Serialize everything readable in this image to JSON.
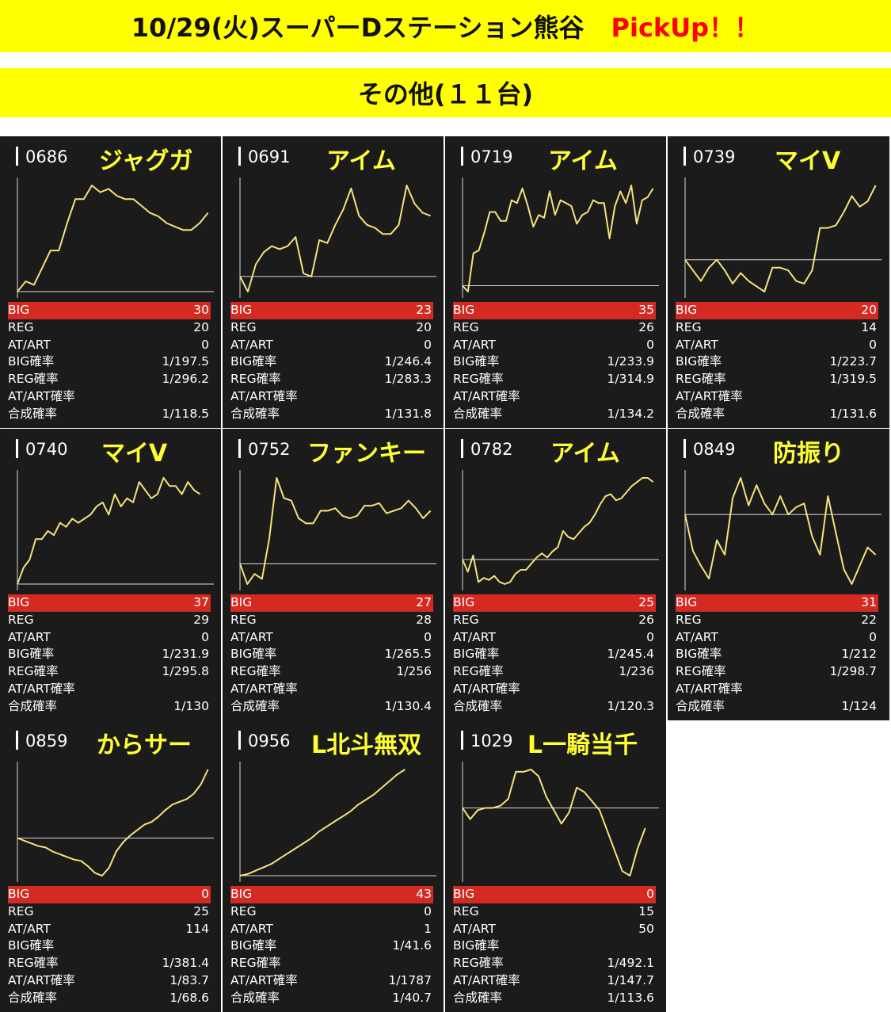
{
  "title": "10/29(火)スーパーDステーション熊谷",
  "pickup": "PickUp！！",
  "subtitle": "その他(１１台)",
  "colors": {
    "banner": "#ffff00",
    "panel": "#1b1b1b",
    "line": "#f5e27a",
    "big_row": "#d42a22",
    "pickup": "#ff0000",
    "name": "#ffff33"
  },
  "labels": {
    "big": "BIG",
    "reg": "REG",
    "at": "AT/ART",
    "big_p": "BIG確率",
    "reg_p": "REG確率",
    "at_p": "AT/ART確率",
    "total_p": "合成確率"
  },
  "chart_data": [
    {
      "type": "line",
      "number": "0686",
      "name": "ジャグガ",
      "y": [
        0,
        3,
        2,
        7,
        12,
        12,
        20,
        27,
        27,
        31,
        29,
        30,
        28,
        27,
        27,
        25,
        23,
        22,
        20,
        19,
        18,
        18,
        20,
        23
      ],
      "stats": {
        "big": "30",
        "reg": "20",
        "at": "0",
        "big_p": "1/197.5",
        "reg_p": "1/296.2",
        "at_p": "",
        "total_p": "1/118.5"
      }
    },
    {
      "type": "line",
      "number": "0691",
      "name": "アイム",
      "y": [
        0,
        -5,
        4,
        8,
        10,
        9,
        10,
        13,
        1,
        0,
        12,
        11,
        17,
        22,
        29,
        20,
        17,
        16,
        14,
        14,
        17,
        30,
        24,
        21,
        20
      ],
      "stats": {
        "big": "23",
        "reg": "20",
        "at": "0",
        "big_p": "1/246.4",
        "reg_p": "1/283.3",
        "at_p": "",
        "total_p": "1/131.8"
      }
    },
    {
      "type": "line",
      "number": "0719",
      "name": "アイム",
      "y": [
        0,
        -2,
        11,
        12,
        18,
        25,
        25,
        22,
        22,
        29,
        28,
        33,
        27,
        20,
        24,
        23,
        32,
        24,
        29,
        28,
        27,
        21,
        24,
        25,
        29,
        28,
        28,
        16,
        27,
        32,
        28,
        34,
        21,
        29,
        30,
        33
      ],
      "stats": {
        "big": "35",
        "reg": "26",
        "at": "0",
        "big_p": "1/233.9",
        "reg_p": "1/314.9",
        "at_p": "",
        "total_p": "1/134.2"
      }
    },
    {
      "type": "line",
      "number": "0739",
      "name": "マイV",
      "y": [
        0,
        -4,
        -8,
        -3,
        0,
        -4,
        -9,
        -5,
        -8,
        -10,
        -12,
        -3,
        -3,
        -4,
        -8,
        -9,
        -4,
        12,
        12,
        13,
        18,
        24,
        20,
        22,
        28
      ],
      "stats": {
        "big": "20",
        "reg": "14",
        "at": "0",
        "big_p": "1/223.7",
        "reg_p": "1/319.5",
        "at_p": "",
        "total_p": "1/131.6"
      }
    },
    {
      "type": "line",
      "number": "0740",
      "name": "マイV",
      "y": [
        0,
        4,
        6,
        11,
        11,
        13,
        12,
        15,
        14,
        16,
        15,
        16,
        17,
        19,
        20,
        17,
        22,
        19,
        21,
        20,
        25,
        23,
        21,
        22,
        26,
        24,
        24,
        22,
        25,
        23,
        22
      ],
      "stats": {
        "big": "37",
        "reg": "29",
        "at": "0",
        "big_p": "1/231.9",
        "reg_p": "1/295.8",
        "at_p": "",
        "total_p": "1/130"
      }
    },
    {
      "type": "line",
      "number": "0752",
      "name": "ファンキー",
      "y": [
        0,
        -8,
        -4,
        -6,
        10,
        34,
        26,
        25,
        18,
        16,
        16,
        21,
        21,
        22,
        19,
        18,
        19,
        23,
        23,
        24,
        20,
        21,
        22,
        25,
        22,
        18,
        21
      ],
      "stats": {
        "big": "27",
        "reg": "28",
        "at": "0",
        "big_p": "1/265.5",
        "reg_p": "1/256",
        "at_p": "",
        "total_p": "1/130.4"
      }
    },
    {
      "type": "line",
      "number": "0782",
      "name": "アイム",
      "y": [
        0,
        -6,
        2,
        -11,
        -9,
        -10,
        -8,
        -11,
        -12,
        -11,
        -7,
        -5,
        -5,
        -2,
        1,
        3,
        1,
        4,
        6,
        14,
        11,
        10,
        13,
        16,
        18,
        22,
        27,
        31,
        32,
        29,
        30,
        33,
        36,
        38,
        40,
        40,
        38
      ],
      "stats": {
        "big": "25",
        "reg": "26",
        "at": "0",
        "big_p": "1/245.4",
        "reg_p": "1/236",
        "at_p": "",
        "total_p": "1/120.3"
      }
    },
    {
      "type": "line",
      "number": "0849",
      "name": "防振り",
      "y": [
        0,
        -20,
        -28,
        -35,
        -14,
        -22,
        9,
        20,
        5,
        16,
        6,
        0,
        10,
        0,
        4,
        6,
        -12,
        -22,
        10,
        -10,
        -30,
        -38,
        -28,
        -18,
        -22
      ],
      "stats": {
        "big": "31",
        "reg": "22",
        "at": "0",
        "big_p": "1/212",
        "reg_p": "1/298.7",
        "at_p": "",
        "total_p": "1/124"
      }
    },
    {
      "type": "line",
      "number": "0859",
      "name": "からサー",
      "y": [
        0,
        -2,
        -4,
        -6,
        -7,
        -10,
        -12,
        -14,
        -16,
        -17,
        -21,
        -26,
        -28,
        -22,
        -10,
        -3,
        2,
        6,
        10,
        12,
        16,
        21,
        25,
        27,
        29,
        33,
        40,
        51
      ],
      "stats": {
        "big": "0",
        "reg": "25",
        "at": "114",
        "big_p": "",
        "reg_p": "1/381.4",
        "at_p": "1/83.7",
        "total_p": "1/68.6"
      }
    },
    {
      "type": "line",
      "number": "0956",
      "name": "L北斗無双",
      "y": [
        0,
        1,
        3,
        5,
        7,
        10,
        13,
        16,
        19,
        22,
        26,
        29,
        32,
        35,
        38,
        42,
        45,
        48,
        52,
        56,
        60,
        63
      ],
      "stats": {
        "big": "43",
        "reg": "0",
        "at": "1",
        "big_p": "1/41.6",
        "reg_p": "",
        "at_p": "1/1787",
        "total_p": "1/40.7"
      }
    },
    {
      "type": "line",
      "number": "1029",
      "name": "L一騎当千",
      "y": [
        0,
        -5,
        -1,
        0,
        0,
        1,
        4,
        16,
        16,
        17,
        14,
        5,
        -1,
        -7,
        -2,
        9,
        7,
        3,
        -1,
        -10,
        -19,
        -28,
        -30,
        -18,
        -9
      ],
      "stats": {
        "big": "0",
        "reg": "15",
        "at": "50",
        "big_p": "",
        "reg_p": "1/492.1",
        "at_p": "1/147.7",
        "total_p": "1/113.6"
      }
    }
  ]
}
